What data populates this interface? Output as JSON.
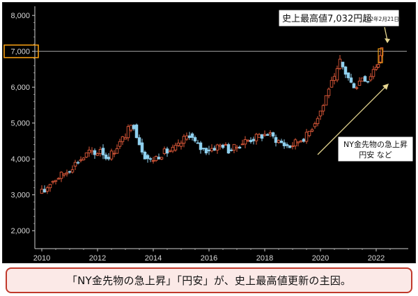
{
  "chart_data": {
    "type": "candlestick",
    "title": "",
    "xlabel": "",
    "ylabel": "",
    "ylim": [
      1500,
      8100
    ],
    "xlim": [
      2009.75,
      2022.9
    ],
    "y_ticks": [
      "2,000",
      "3,000",
      "4,000",
      "5,000",
      "6,000",
      "7,000",
      "8,000"
    ],
    "y_tick_values": [
      2000,
      3000,
      4000,
      5000,
      6000,
      7000,
      8000
    ],
    "x_ticks": [
      "2010",
      "2012",
      "2014",
      "2016",
      "2018",
      "2020",
      "2022"
    ],
    "x_tick_values": [
      2010,
      2012,
      2014,
      2016,
      2018,
      2020,
      2022
    ],
    "grid": false,
    "up_color": "#e05a3a",
    "down_color": "#8fd0ee",
    "highlight_level": {
      "value": 7000,
      "label": "7,000",
      "color": "#f39c12"
    },
    "series": [
      {
        "x": [
          2010.0,
          2010.2,
          2010.4,
          2010.6,
          2010.8,
          2011.0,
          2011.2,
          2011.4,
          2011.6,
          2011.8,
          2012.0,
          2012.2,
          2012.4,
          2012.6,
          2012.8,
          2013.0,
          2013.2,
          2013.4,
          2013.6,
          2013.8,
          2014.0,
          2014.2,
          2014.4,
          2014.6,
          2014.8,
          2015.0,
          2015.2,
          2015.4,
          2015.6,
          2015.8,
          2016.0,
          2016.2,
          2016.4,
          2016.6,
          2016.8,
          2017.0,
          2017.2,
          2017.4,
          2017.6,
          2017.8,
          2018.0,
          2018.2,
          2018.4,
          2018.6,
          2018.8,
          2019.0,
          2019.2,
          2019.4,
          2019.6,
          2019.8,
          2020.0,
          2020.2,
          2020.4,
          2020.6,
          2020.8,
          2021.0,
          2021.2,
          2021.4,
          2021.6,
          2021.8,
          2022.0,
          2022.15
        ],
        "close": [
          3100,
          3350,
          3450,
          3550,
          3650,
          3800,
          3950,
          4050,
          4200,
          4100,
          4300,
          4050,
          4150,
          4350,
          4550,
          4800,
          4950,
          4450,
          4100,
          3950,
          4050,
          4150,
          4200,
          4250,
          4350,
          4550,
          4700,
          4450,
          4300,
          4250,
          4300,
          4350,
          4400,
          4250,
          4300,
          4400,
          4500,
          4550,
          4600,
          4650,
          4700,
          4600,
          4500,
          4400,
          4350,
          4450,
          4550,
          4650,
          4900,
          5200,
          5500,
          6000,
          6200,
          6700,
          6400,
          6100,
          6050,
          6300,
          6200,
          6500,
          6700,
          7032
        ]
      }
    ]
  },
  "annotations": {
    "record_high_label": "史上最高値7,032円超",
    "record_high_date": "（22年2月21日）",
    "drivers_line1": "NY金先物の急上昇",
    "drivers_line2": "円安 など"
  },
  "caption": "「NY金先物の急上昇」「円安」が、史上最高値更新の主因。"
}
